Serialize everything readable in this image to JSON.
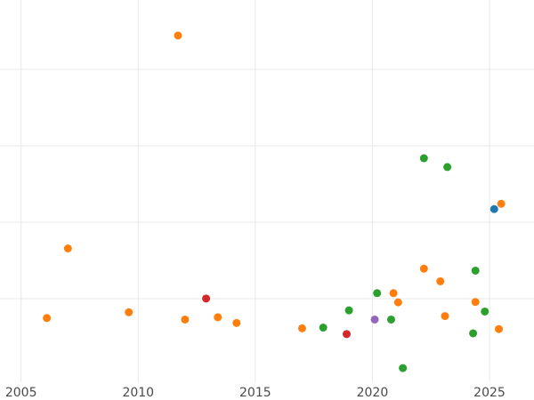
{
  "chart_data": {
    "type": "scatter",
    "title": "",
    "xlabel": "",
    "ylabel": "",
    "xlim": [
      2004.1,
      2026.9
    ],
    "ylim": [
      0,
      1
    ],
    "grid": true,
    "legend": "none",
    "x_ticks": [
      2005,
      2010,
      2015,
      2020,
      2025
    ],
    "x_tick_labels": [
      "2005",
      "2010",
      "2015",
      "2020",
      "2025"
    ],
    "colors": {
      "orange": "#ff7f0e",
      "green": "#2ca02c",
      "red": "#d62728",
      "purple": "#9467bd",
      "blue": "#1f77b4",
      "grid": "#e8e8e8",
      "tick_text": "#4a4a4a"
    },
    "series": [
      {
        "color": "#ff7f0e",
        "points": [
          {
            "x": 2006.1,
            "y": 0.168
          },
          {
            "x": 2007.0,
            "y": 0.35
          },
          {
            "x": 2009.6,
            "y": 0.183
          },
          {
            "x": 2011.7,
            "y": 0.907
          },
          {
            "x": 2012.0,
            "y": 0.164
          },
          {
            "x": 2013.4,
            "y": 0.17
          },
          {
            "x": 2014.2,
            "y": 0.155
          },
          {
            "x": 2017.0,
            "y": 0.141
          },
          {
            "x": 2020.9,
            "y": 0.233
          },
          {
            "x": 2021.1,
            "y": 0.209
          },
          {
            "x": 2022.2,
            "y": 0.297
          },
          {
            "x": 2022.9,
            "y": 0.264
          },
          {
            "x": 2023.1,
            "y": 0.173
          },
          {
            "x": 2024.4,
            "y": 0.21
          },
          {
            "x": 2025.4,
            "y": 0.139
          },
          {
            "x": 2025.5,
            "y": 0.467
          }
        ]
      },
      {
        "color": "#2ca02c",
        "points": [
          {
            "x": 2017.9,
            "y": 0.143
          },
          {
            "x": 2019.0,
            "y": 0.188
          },
          {
            "x": 2020.2,
            "y": 0.233
          },
          {
            "x": 2020.8,
            "y": 0.164
          },
          {
            "x": 2021.3,
            "y": 0.037
          },
          {
            "x": 2022.2,
            "y": 0.586
          },
          {
            "x": 2023.2,
            "y": 0.563
          },
          {
            "x": 2024.3,
            "y": 0.128
          },
          {
            "x": 2024.4,
            "y": 0.292
          },
          {
            "x": 2024.8,
            "y": 0.185
          }
        ]
      },
      {
        "color": "#d62728",
        "points": [
          {
            "x": 2012.9,
            "y": 0.219
          },
          {
            "x": 2018.9,
            "y": 0.126
          }
        ]
      },
      {
        "color": "#9467bd",
        "points": [
          {
            "x": 2020.1,
            "y": 0.164
          }
        ]
      },
      {
        "color": "#1f77b4",
        "points": [
          {
            "x": 2025.2,
            "y": 0.453
          }
        ]
      }
    ]
  }
}
